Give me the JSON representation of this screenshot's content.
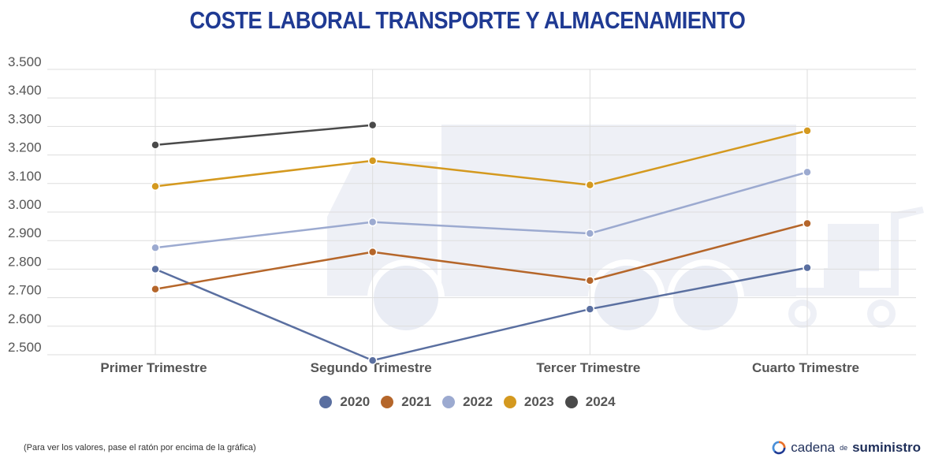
{
  "title": "COSTE LABORAL TRANSPORTE Y ALMACENAMIENTO",
  "note": "(Para ver los valores, pase el ratón por encima de la gráfica)",
  "brand": {
    "part1": "cadena",
    "part2": "de",
    "part3": "suministro"
  },
  "chart_data": {
    "type": "line",
    "categories": [
      "Primer Trimestre",
      "Segundo Trimestre",
      "Tercer Trimestre",
      "Cuarto Trimestre"
    ],
    "ylim": [
      2500,
      3500
    ],
    "yticks": [
      2500,
      2600,
      2700,
      2800,
      2900,
      3000,
      3100,
      3200,
      3300,
      3400,
      3500
    ],
    "ytick_labels": [
      "2.500",
      "2.600",
      "2.700",
      "2.800",
      "2.900",
      "3.000",
      "3.100",
      "3.200",
      "3.300",
      "3.400",
      "3.500"
    ],
    "grid": true,
    "legend_position": "bottom",
    "series": [
      {
        "name": "2020",
        "color": "#5a6fa0",
        "values": [
          2800,
          2480,
          2660,
          2805
        ]
      },
      {
        "name": "2021",
        "color": "#b5662a",
        "values": [
          2730,
          2860,
          2760,
          2960
        ]
      },
      {
        "name": "2022",
        "color": "#9caad0",
        "values": [
          2875,
          2965,
          2925,
          3140
        ]
      },
      {
        "name": "2023",
        "color": "#d4991f",
        "values": [
          3090,
          3180,
          3095,
          3285
        ]
      },
      {
        "name": "2024",
        "color": "#4a4a4a",
        "values": [
          3235,
          3305,
          null,
          null
        ]
      }
    ]
  }
}
